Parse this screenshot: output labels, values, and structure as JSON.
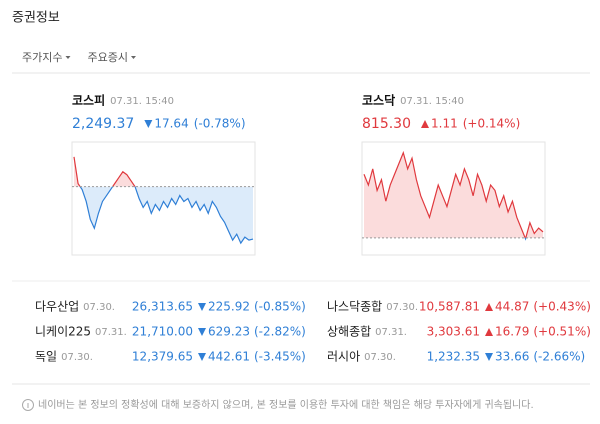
{
  "header": {
    "title": "증권정보"
  },
  "tabs": [
    "주가지수",
    "주요증시"
  ],
  "charts": [
    {
      "name": "코스피",
      "time": "07.31. 15:40",
      "price": "2,249.37",
      "change": "17.64",
      "change_pct": "(-0.78%)",
      "direction": "down",
      "prev_close": 2267.01,
      "ylim": [
        2244,
        2282
      ],
      "values": [
        2277,
        2268,
        2266,
        2262,
        2256,
        2253,
        2258,
        2262,
        2264,
        2266,
        2268,
        2270,
        2272,
        2271,
        2269,
        2267,
        2263,
        2260,
        2262,
        2258,
        2261,
        2259,
        2262,
        2260,
        2263,
        2261,
        2264,
        2262,
        2263,
        2260,
        2262,
        2259,
        2261,
        2258,
        2262,
        2260,
        2257,
        2255,
        2252,
        2249,
        2251,
        2248,
        2250,
        2249,
        2249.37
      ]
    },
    {
      "name": "코스닥",
      "time": "07.31. 15:40",
      "price": "815.30",
      "change": "1.11",
      "change_pct": "(+0.14%)",
      "direction": "up",
      "prev_close": 814.19,
      "ylim": [
        811,
        832
      ],
      "values": [
        826,
        824,
        827,
        823,
        825,
        821,
        824,
        826,
        828,
        830,
        827,
        829,
        825,
        822,
        820,
        818,
        821,
        824,
        822,
        820,
        823,
        826,
        824,
        827,
        825,
        822,
        826,
        824,
        821,
        824,
        823,
        820,
        822,
        819,
        821,
        818,
        816,
        814,
        817,
        815,
        816,
        815.3
      ]
    }
  ],
  "markets": {
    "left": [
      {
        "name": "다우산업",
        "date": "07.30.",
        "price": "26,313.65",
        "change": "225.92",
        "pct": "(-0.85%)",
        "direction": "down"
      },
      {
        "name": "니케이225",
        "date": "07.31.",
        "price": "21,710.00",
        "change": "629.23",
        "pct": "(-2.82%)",
        "direction": "down"
      },
      {
        "name": "독일",
        "date": "07.30.",
        "price": "12,379.65",
        "change": "442.61",
        "pct": "(-3.45%)",
        "direction": "down"
      }
    ],
    "right": [
      {
        "name": "나스닥종합",
        "date": "07.30.",
        "price": "10,587.81",
        "change": "44.87",
        "pct": "(+0.43%)",
        "direction": "up"
      },
      {
        "name": "상해종합",
        "date": "07.31.",
        "price": "3,303.61",
        "change": "16.79",
        "pct": "(+0.51%)",
        "direction": "up"
      },
      {
        "name": "러시아",
        "date": "07.30.",
        "price": "1,232.35",
        "change": "33.66",
        "pct": "(-2.66%)",
        "direction": "down"
      }
    ]
  },
  "disclaimer": "네이버는 본 정보의 정확성에 대해 보증하지 않으며, 본 정보를 이용한 투자에 대한 책임은 해당 투자자에게 귀속됩니다."
}
